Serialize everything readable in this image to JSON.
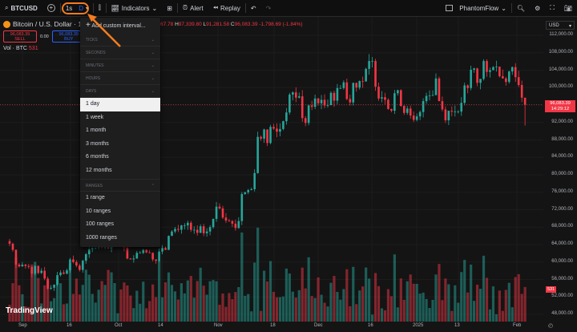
{
  "toolbar": {
    "symbol": "BTCUSD",
    "interval_seconds": "1s",
    "interval": "D",
    "indicators": "Indicators",
    "alert": "Alert",
    "replay": "Replay",
    "layout": "PhantomFlow"
  },
  "legend": {
    "title": "Bitcoin / U.S. Dollar · 1",
    "open_tail": "67.78",
    "high_label": "H",
    "high": "97,339.80",
    "low_label": "L",
    "low": "91,281.58",
    "close_label": "C",
    "close": "96,083.39",
    "change": "-1,798.69 (-1.84%)",
    "sell_price": "96,083.39",
    "sell": "SELL",
    "spread": "0.00",
    "buy_price": "96,083.39",
    "buy": "BUY",
    "vol_label": "Vol · BTC",
    "vol_value": "531"
  },
  "dropdown": {
    "add_custom": "Add custom interval...",
    "sections": [
      "TICKS",
      "SECONDS",
      "MINUTES",
      "HOURS",
      "DAYS"
    ],
    "days": [
      "1 day",
      "1 week",
      "1 month",
      "3 months",
      "6 months",
      "12 months"
    ],
    "selected": "1 day",
    "ranges_header": "RANGES",
    "ranges": [
      "1 range",
      "10 ranges",
      "100 ranges",
      "1000 ranges"
    ]
  },
  "axis": {
    "currency": "USD",
    "prices": [
      "112,000.00",
      "108,000.00",
      "104,000.00",
      "100,000.00",
      "92,000.00",
      "88,000.00",
      "84,000.00",
      "80,000.00",
      "76,000.00",
      "72,000.00",
      "68,000.00",
      "64,000.00",
      "60,000.00",
      "56,000.00",
      "52,000.00",
      "48,000.00"
    ],
    "last_price": "96,083.39",
    "countdown": "14:29:12",
    "vol_badge": "531",
    "time": [
      "Sep",
      "16",
      "Oct",
      "14",
      "Nov",
      "18",
      "Dec",
      "16",
      "2025",
      "13",
      "Feb"
    ]
  },
  "logo": "TradingView",
  "colors": {
    "up": "#26a69a",
    "down": "#f23645",
    "highlight": "#f57c1f"
  },
  "chart_data": {
    "type": "candlestick",
    "start": "2024-08-25",
    "end": "2025-02-03",
    "interval": "1D",
    "ylim": [
      48000,
      112000
    ],
    "close": [
      64200,
      62800,
      59400,
      59000,
      59400,
      59100,
      58900,
      57300,
      59100,
      57500,
      58000,
      56200,
      53900,
      54100,
      54800,
      57000,
      57600,
      57300,
      58100,
      60600,
      60000,
      59200,
      58200,
      60300,
      61800,
      62900,
      63200,
      63300,
      63600,
      63300,
      64300,
      63100,
      65200,
      65800,
      65900,
      65600,
      63300,
      60800,
      60600,
      60800,
      62100,
      62100,
      62800,
      62200,
      62100,
      60600,
      60300,
      62400,
      63200,
      62800,
      66000,
      67000,
      67600,
      67400,
      68400,
      68400,
      69000,
      67400,
      67400,
      66700,
      68200,
      66600,
      67000,
      68000,
      69900,
      72700,
      72300,
      70200,
      69500,
      69400,
      68800,
      67800,
      69400,
      75600,
      76000,
      76500,
      76700,
      80400,
      88700,
      88300,
      90400,
      87300,
      91000,
      90600,
      89900,
      90500,
      92300,
      94300,
      98400,
      98900,
      97700,
      98000,
      93000,
      91900,
      95900,
      95600,
      97500,
      96400,
      97200,
      95900,
      96000,
      98800,
      97000,
      99900,
      99900,
      101200,
      97400,
      96600,
      101100,
      100000,
      101500,
      101400,
      104300,
      106100,
      106100,
      100200,
      97500,
      97800,
      97200,
      95100,
      94700,
      98700,
      99400,
      95800,
      94200,
      95200,
      93600,
      92600,
      93400,
      94400,
      96900,
      98100,
      98200,
      98300,
      102100,
      96900,
      95000,
      92500,
      94700,
      94500,
      94500,
      94500,
      96500,
      100500,
      99900,
      104100,
      104400,
      101100,
      102000,
      106100,
      103600,
      104000,
      104700,
      104800,
      102600,
      102100,
      101300,
      103700,
      104700,
      102400,
      100600,
      97700,
      96083.39
    ]
  }
}
